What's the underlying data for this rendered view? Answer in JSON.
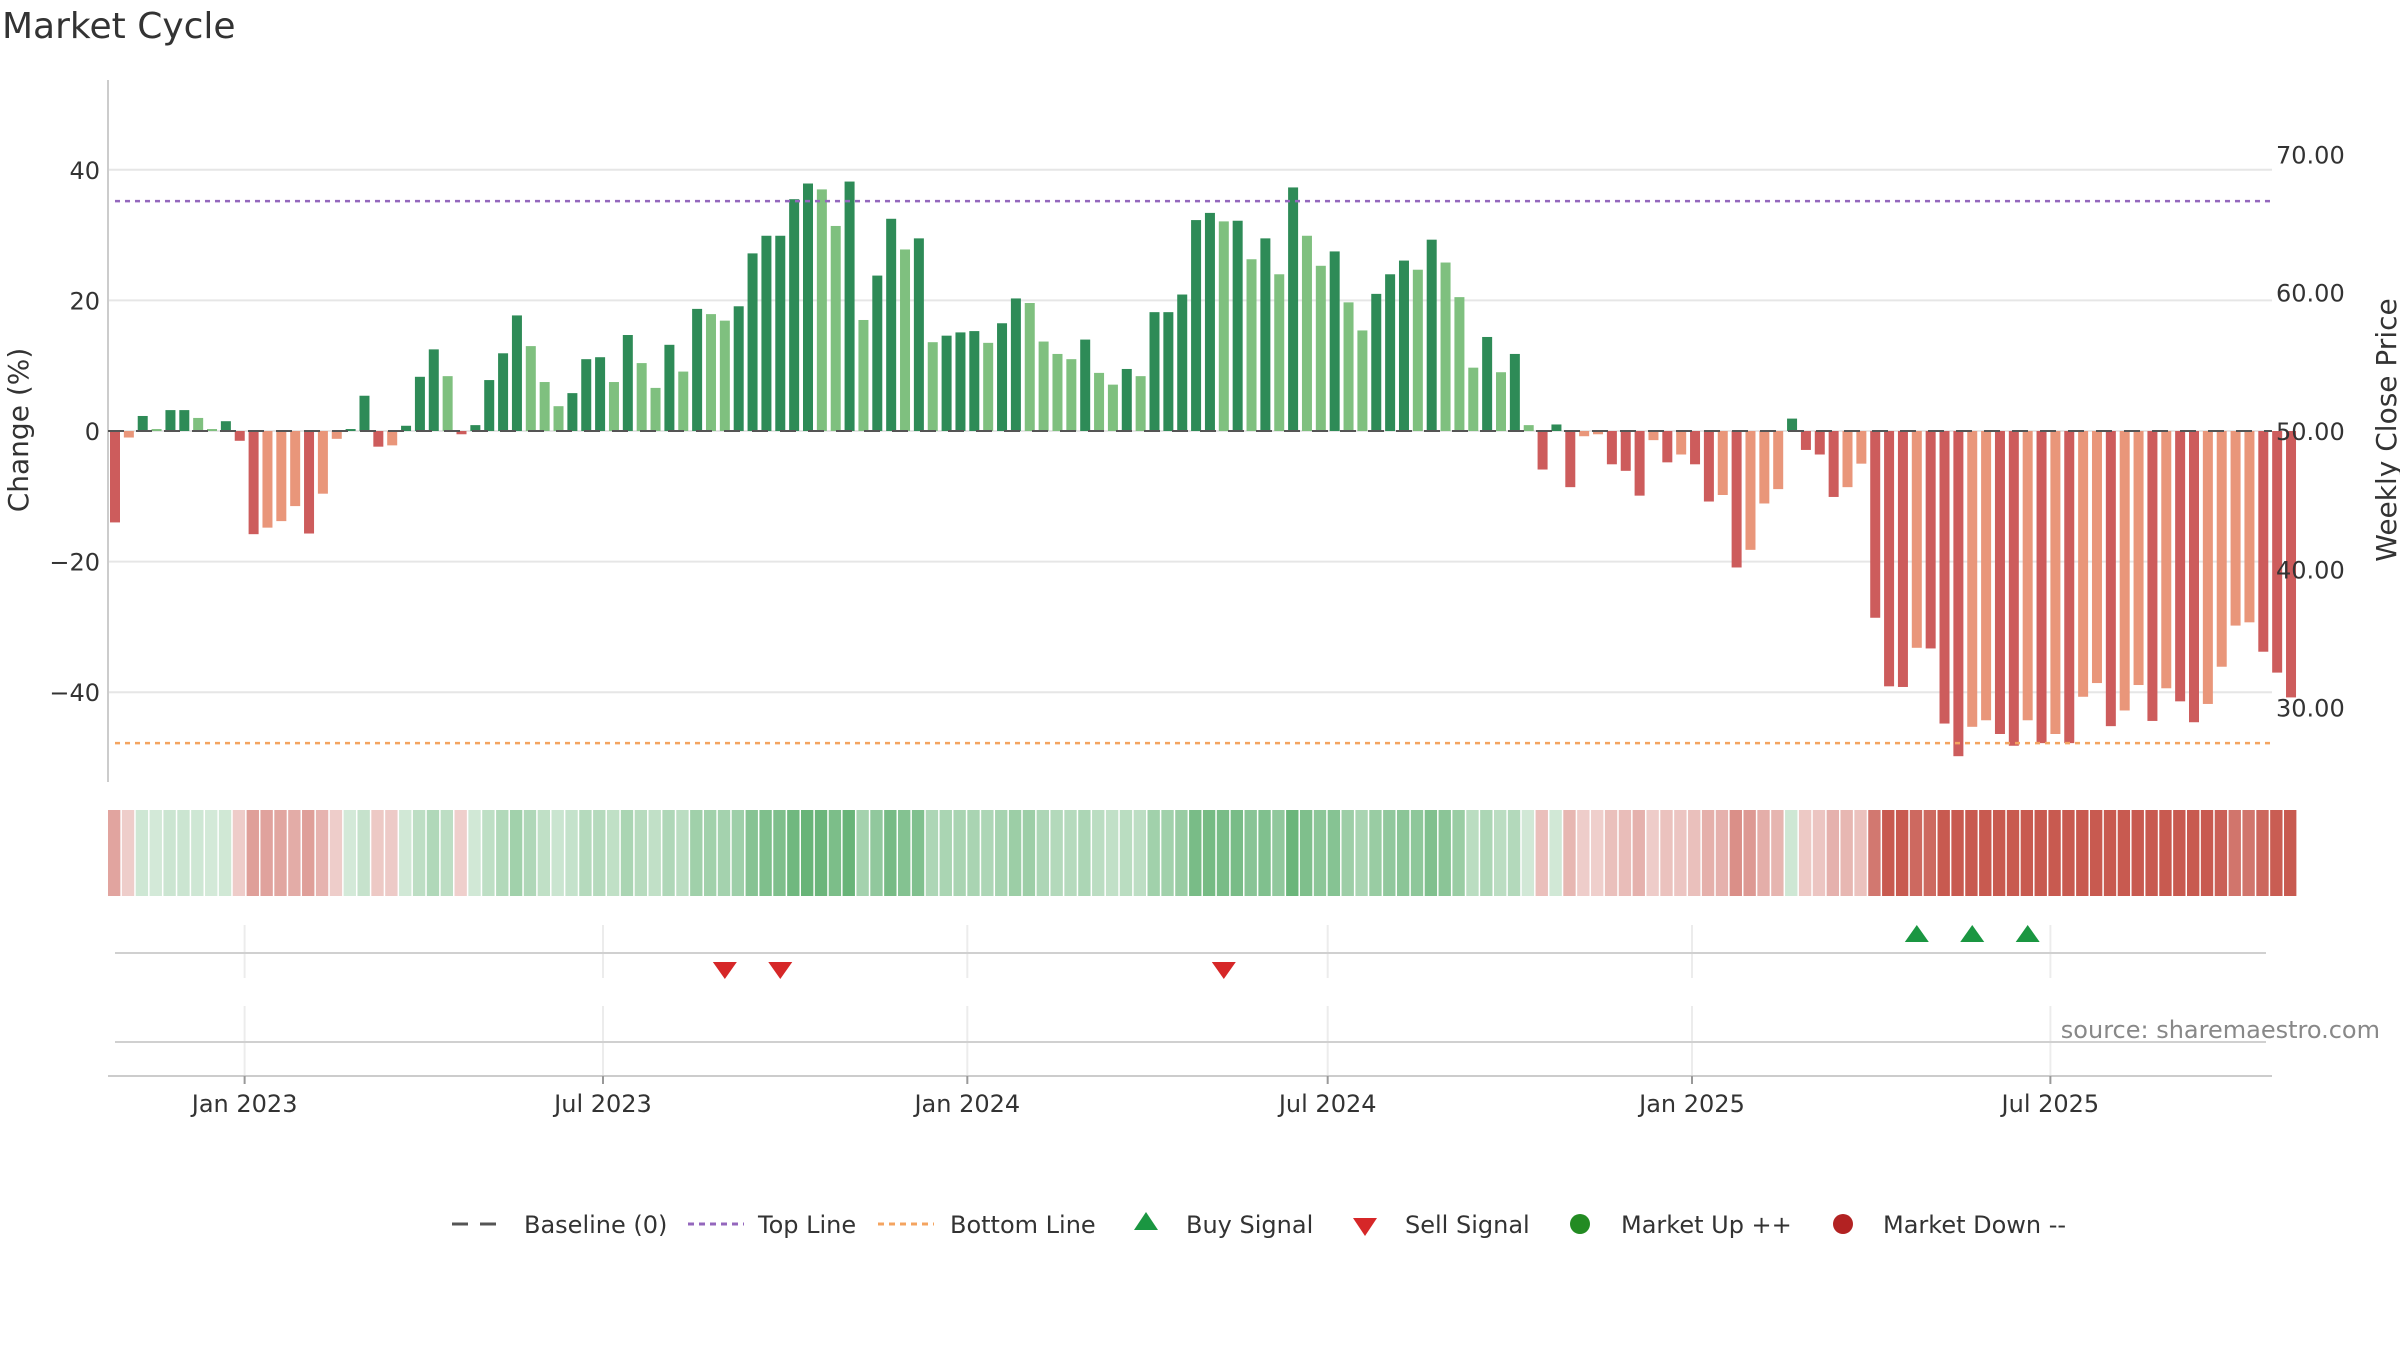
{
  "title": "Market Cycle",
  "source": "source: sharemaestro.com",
  "chart_data": {
    "type": "bar",
    "title": "Market Cycle",
    "ylabel": "Change (%)",
    "y2label": "Weekly Close Price",
    "ylim": [
      -54,
      54
    ],
    "y2lim": [
      24,
      73
    ],
    "yticks": [
      "40",
      "20",
      "0",
      "−20",
      "−40"
    ],
    "y2ticks": [
      "70.00",
      "60.00",
      "50.00",
      "40.00",
      "30.00"
    ],
    "grid": true,
    "top_line": 35.2,
    "bottom_line": -47.8,
    "x_start": "2022-10-24",
    "x_ticks": [
      "Jan 2023",
      "Jul 2023",
      "Jan 2024",
      "Jul 2024",
      "Jan 2025",
      "Jul 2025"
    ],
    "x_tick_dates": [
      "2023-01-01",
      "2023-07-01",
      "2024-01-01",
      "2024-07-01",
      "2025-01-01",
      "2025-07-01"
    ],
    "weekly_change": [
      -14,
      -1,
      2.3,
      0.3,
      3.2,
      3.2,
      2,
      0.3,
      1.5,
      -1.5,
      -15.8,
      -14.8,
      -13.8,
      -11.5,
      -15.7,
      -9.6,
      -1.2,
      0.3,
      5.4,
      -2.4,
      -2.2,
      0.8,
      8.3,
      12.5,
      8.4,
      -0.5,
      0.9,
      7.8,
      11.9,
      17.7,
      13,
      7.5,
      3.8,
      5.8,
      11,
      11.3,
      7.5,
      14.7,
      10.4,
      6.6,
      13.2,
      9.1,
      18.7,
      17.9,
      16.9,
      19.1,
      27.2,
      29.9,
      29.9,
      35.5,
      37.9,
      37,
      31.4,
      38.2,
      17,
      23.8,
      32.5,
      27.8,
      29.5,
      13.6,
      14.6,
      15.1,
      15.3,
      13.5,
      16.5,
      20.3,
      19.6,
      13.7,
      11.8,
      11,
      14,
      8.9,
      7.1,
      9.5,
      8.4,
      18.2,
      18.2,
      20.9,
      32.3,
      33.4,
      32.1,
      32.2,
      26.3,
      29.5,
      24,
      37.3,
      29.9,
      25.3,
      27.5,
      19.7,
      15.4,
      21,
      24,
      26.1,
      24.7,
      29.3,
      25.8,
      20.5,
      9.7,
      14.4,
      9,
      11.8,
      0.9,
      -5.9,
      1,
      -8.6,
      -0.8,
      -0.5,
      -5.1,
      -6.1,
      -9.9,
      -1.4,
      -4.8,
      -3.6,
      -5.1,
      -10.8,
      -9.8,
      -20.9,
      -18.2,
      -11.1,
      -8.9,
      1.9,
      -2.9,
      -3.6,
      -10.1,
      -8.6,
      -5,
      -28.6,
      -39.1,
      -39.2,
      -33.2,
      -33.3,
      -44.8,
      -49.8,
      -45.3,
      -44.3,
      -46.4,
      -48.2,
      -44.3,
      -47.8,
      -46.4,
      -47.8,
      -40.7,
      -38.6,
      -45.2,
      -42.8,
      -38.9,
      -44.4,
      -39.4,
      -41.4,
      -44.6,
      -41.8,
      -36.1,
      -29.8,
      -29.3,
      -33.8,
      -37,
      -40.8
    ],
    "series": [
      {
        "name": "Baseline (0)"
      },
      {
        "name": "Top Line"
      },
      {
        "name": "Bottom Line"
      },
      {
        "name": "Buy Signal",
        "dates": [
          "2025-04-21",
          "2025-05-19",
          "2025-06-16"
        ]
      },
      {
        "name": "Sell Signal",
        "dates": [
          "2023-08-28",
          "2023-09-25",
          "2024-05-06"
        ]
      },
      {
        "name": "Market Up ++"
      },
      {
        "name": "Market Down --"
      }
    ]
  },
  "legend": {
    "baseline": "Baseline (0)",
    "top_line": "Top Line",
    "bottom_line": "Bottom Line",
    "buy_signal": "Buy Signal",
    "sell_signal": "Sell Signal",
    "market_up": "Market Up ++",
    "market_down": "Market Down --"
  },
  "colors": {
    "up_dark": "#2e8b57",
    "up_light": "#7fc07f",
    "down_dark": "#cd5c5c",
    "down_light": "#e9967a",
    "top_line": "#9467bd",
    "bottom_line": "#f4a460",
    "buy": "#1a9641",
    "sell": "#d62728",
    "market_up_dot": "#228b22",
    "market_down_dot": "#b22222",
    "baseline": "#555555"
  }
}
